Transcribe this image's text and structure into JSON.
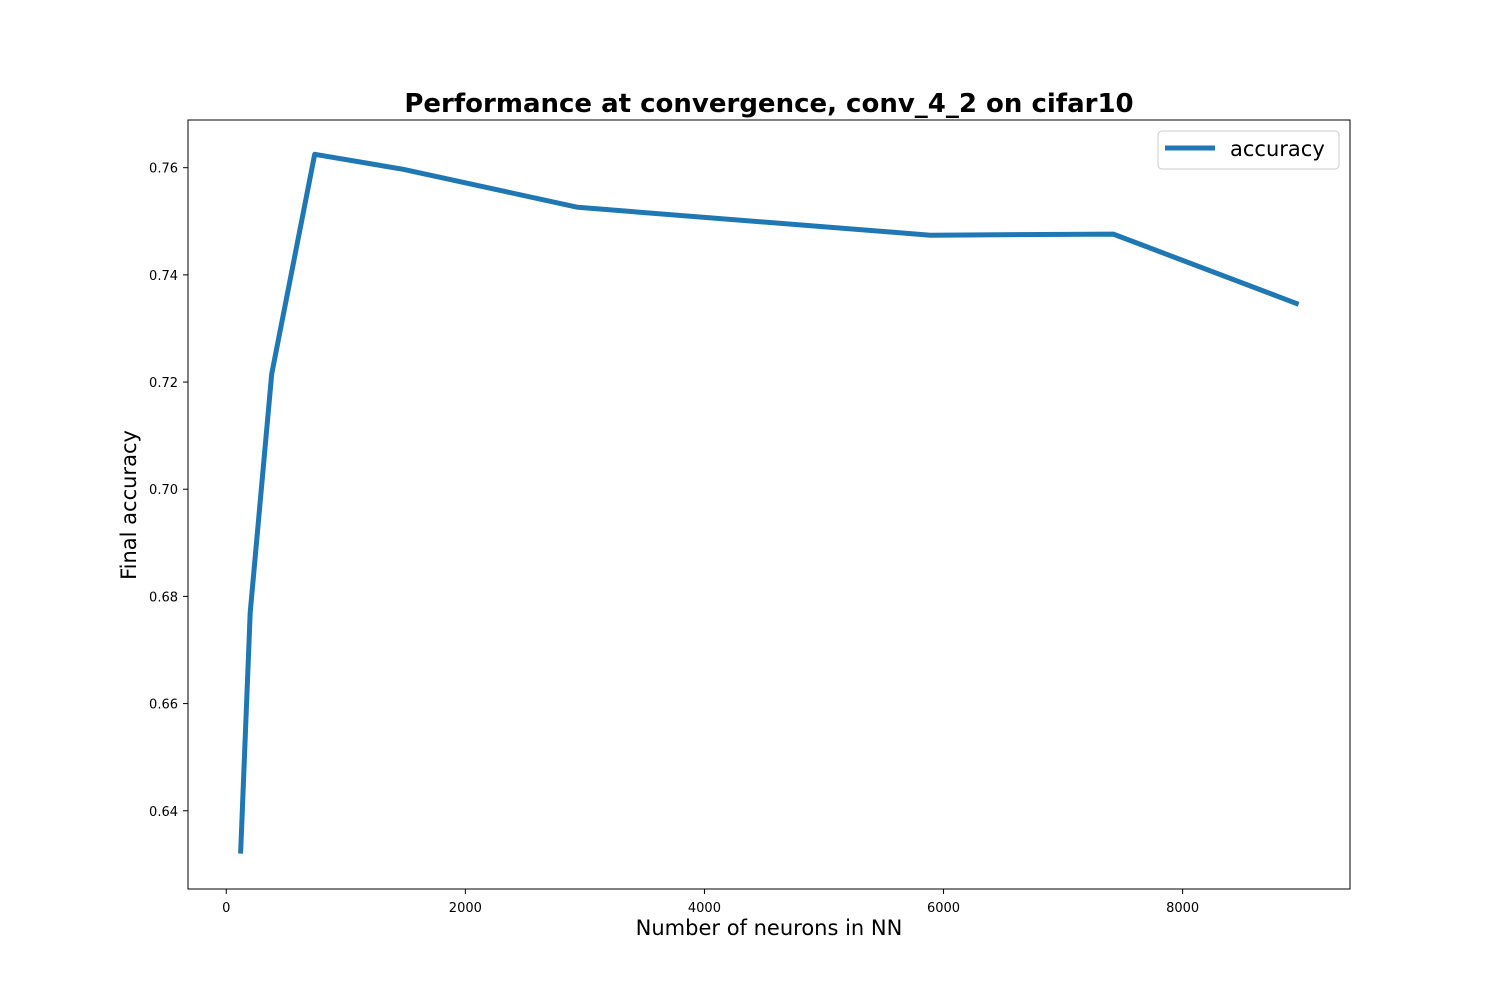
{
  "chart_data": {
    "type": "line",
    "title": "Performance at convergence, conv_4_2 on cifar10",
    "xlabel": "Number of neurons in NN",
    "ylabel": "Final accuracy",
    "xlim": [
      -320,
      9400
    ],
    "ylim": [
      0.6254,
      0.7689
    ],
    "xticks": [
      0,
      2000,
      4000,
      6000,
      8000
    ],
    "xtick_labels": [
      "0",
      "2000",
      "4000",
      "6000",
      "8000"
    ],
    "yticks": [
      0.64,
      0.66,
      0.68,
      0.7,
      0.72,
      0.74,
      0.76
    ],
    "ytick_labels": [
      "0.64",
      "0.66",
      "0.68",
      "0.70",
      "0.72",
      "0.74",
      "0.76"
    ],
    "grid": false,
    "legend_position": "top-right",
    "series": [
      {
        "name": "accuracy",
        "color": "#1f77b4",
        "x": [
          120,
          200,
          380,
          740,
          1480,
          2940,
          5890,
          7420,
          8970
        ],
        "y": [
          0.632,
          0.677,
          0.7215,
          0.7625,
          0.7597,
          0.7526,
          0.7474,
          0.7476,
          0.7345
        ]
      }
    ]
  }
}
